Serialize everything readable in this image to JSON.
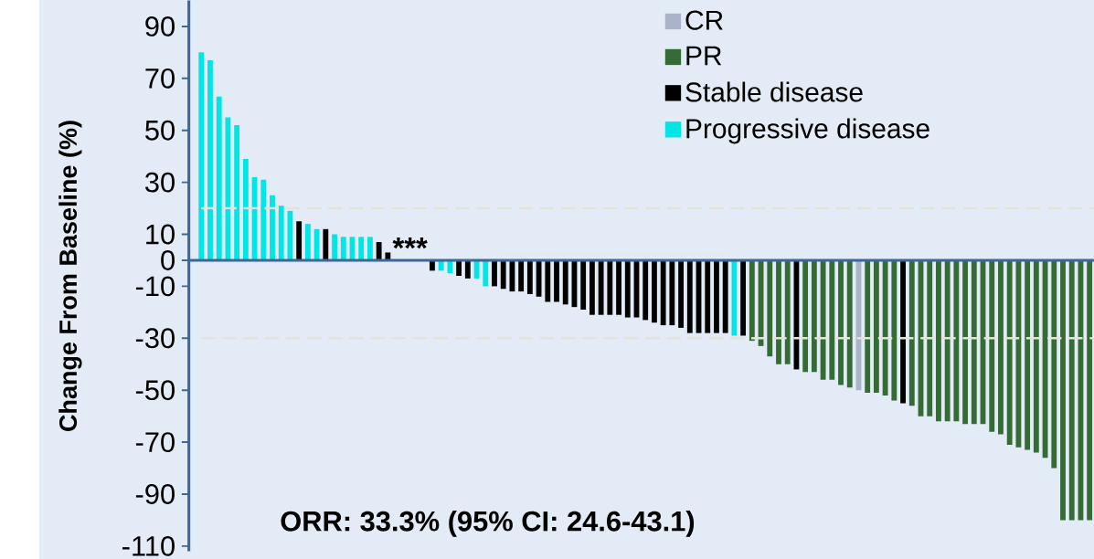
{
  "chart_data": {
    "type": "bar",
    "ylabel": "Change From Baseline (%)",
    "categories": [
      null,
      null,
      null,
      null,
      null,
      null,
      null,
      null,
      null,
      null,
      null,
      null,
      null,
      null,
      null,
      null,
      null,
      null,
      null,
      null,
      null,
      null,
      null,
      null,
      null,
      null,
      null,
      null,
      null,
      null,
      null,
      null,
      null,
      null,
      null,
      null,
      null,
      null,
      null,
      null,
      null,
      null,
      null,
      null,
      null,
      null,
      null,
      null,
      null,
      null,
      null,
      null,
      null,
      null,
      null,
      null,
      null,
      null,
      null,
      null,
      null,
      null,
      null,
      null,
      null,
      null,
      null,
      null,
      null,
      null,
      null,
      null,
      null,
      null,
      null,
      null,
      null,
      null,
      null,
      null,
      null,
      null,
      null,
      null,
      null,
      null,
      null,
      null,
      null,
      null,
      null,
      null,
      null,
      null,
      null,
      null,
      null,
      null,
      null,
      null,
      null
    ],
    "series": [
      {
        "name": "CR",
        "color": "#aab4c8",
        "values": [
          null,
          null,
          null,
          null,
          null,
          null,
          null,
          null,
          null,
          null,
          null,
          null,
          null,
          null,
          null,
          null,
          null,
          null,
          null,
          null,
          null,
          null,
          null,
          null,
          null,
          null,
          null,
          null,
          null,
          null,
          null,
          null,
          null,
          null,
          null,
          null,
          null,
          null,
          null,
          null,
          null,
          null,
          null,
          null,
          null,
          null,
          null,
          null,
          null,
          null,
          null,
          null,
          null,
          null,
          null,
          null,
          null,
          null,
          null,
          null,
          null,
          null,
          null,
          null,
          null,
          null,
          null,
          null,
          null,
          null,
          null,
          null,
          null,
          null,
          -50,
          null,
          null,
          null,
          null,
          null,
          null,
          null,
          null,
          null,
          null,
          null,
          null,
          null,
          null,
          null,
          null,
          null,
          null,
          null,
          null,
          null,
          null,
          null,
          null,
          null,
          null
        ]
      },
      {
        "name": "PR",
        "color": "#356b35",
        "values": [
          null,
          null,
          null,
          null,
          null,
          null,
          null,
          null,
          null,
          null,
          null,
          null,
          null,
          null,
          null,
          null,
          null,
          null,
          null,
          null,
          null,
          null,
          null,
          null,
          null,
          null,
          null,
          null,
          null,
          null,
          null,
          null,
          null,
          null,
          null,
          null,
          null,
          null,
          null,
          null,
          null,
          null,
          null,
          null,
          null,
          null,
          null,
          null,
          null,
          null,
          null,
          null,
          null,
          null,
          null,
          null,
          null,
          null,
          null,
          null,
          null,
          null,
          -31,
          -33,
          -37,
          -40,
          -40,
          null,
          -43,
          -43,
          -46,
          -46,
          -48,
          -49,
          null,
          -51,
          -51,
          -52,
          -54,
          null,
          -56,
          -60,
          -60,
          -62,
          -62,
          -62,
          -63,
          -63,
          -63,
          -66,
          -67,
          -71,
          -72,
          -73,
          -74,
          -76,
          -80,
          -100,
          -100,
          -100,
          -100
        ]
      },
      {
        "name": "Stable disease",
        "color": "#000000",
        "values": [
          null,
          null,
          null,
          null,
          null,
          null,
          null,
          null,
          null,
          null,
          null,
          15,
          null,
          null,
          12,
          null,
          null,
          null,
          null,
          null,
          7,
          3,
          null,
          null,
          null,
          null,
          -4,
          null,
          null,
          -6,
          -7,
          null,
          null,
          -10,
          -11,
          -12,
          -12,
          -13,
          -14,
          -16,
          -16,
          -17,
          -18,
          -19,
          -21,
          -21,
          -21,
          -21,
          -22,
          -22,
          -23,
          -24,
          -25,
          -25,
          -26,
          -28,
          -28,
          -28,
          -28,
          -28,
          null,
          -29,
          null,
          null,
          null,
          null,
          null,
          -42,
          null,
          null,
          null,
          null,
          null,
          null,
          null,
          null,
          null,
          null,
          null,
          -55,
          null,
          null,
          null,
          null,
          null,
          null,
          null,
          null,
          null,
          null,
          null,
          null,
          null,
          null,
          null,
          null,
          null,
          null,
          null,
          null,
          null
        ]
      },
      {
        "name": "Progressive disease",
        "color": "#00e6e6",
        "values": [
          80,
          77,
          63,
          55,
          52,
          39,
          32,
          31,
          25,
          21,
          19,
          null,
          14,
          12,
          null,
          10,
          9,
          9,
          9,
          9,
          null,
          null,
          null,
          null,
          null,
          null,
          null,
          -4,
          -5,
          null,
          null,
          -7,
          -10,
          null,
          null,
          null,
          null,
          null,
          null,
          null,
          null,
          null,
          null,
          null,
          null,
          null,
          null,
          null,
          null,
          null,
          null,
          null,
          null,
          null,
          null,
          null,
          null,
          null,
          null,
          null,
          -29,
          null,
          null,
          null,
          null,
          null,
          null,
          null,
          null,
          null,
          null,
          null,
          null,
          null,
          null,
          null,
          null,
          null,
          null,
          null,
          null,
          null,
          null,
          null,
          null,
          null,
          null,
          null,
          null,
          null,
          null,
          null,
          null,
          null,
          null,
          null,
          null,
          null,
          null,
          null,
          null
        ]
      }
    ],
    "ylim": [
      -112,
      100
    ],
    "yticks": [
      90,
      70,
      50,
      30,
      10,
      0,
      -10,
      -30,
      -50,
      -70,
      -90,
      -110
    ],
    "ref_lines": [
      {
        "axis": "y",
        "value": 0,
        "color": "#3a6898",
        "line_style": "solid"
      },
      {
        "axis": "y",
        "value": 20,
        "color": "#e6e2d8",
        "line_style": "dashed"
      },
      {
        "axis": "y",
        "value": -30,
        "color": "#e6e2d8",
        "line_style": "dashed"
      }
    ],
    "annotations": [
      "***",
      "ORR: 33.3% (95% CI: 24.6-43.1)"
    ],
    "legend": "top right",
    "grid": false
  }
}
